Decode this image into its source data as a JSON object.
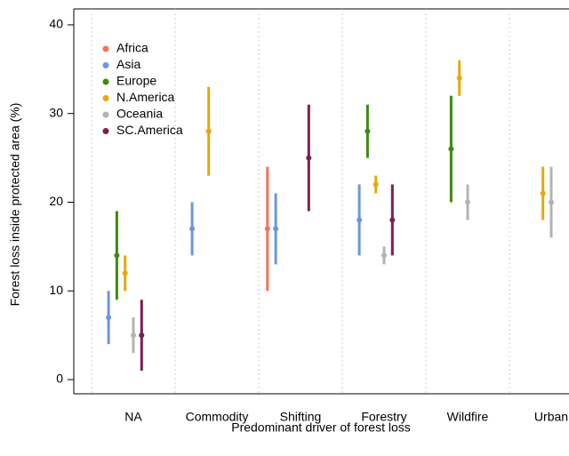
{
  "chart_data": {
    "type": "interval",
    "x_label": "Predominant driver of forest loss",
    "y_label": "Forest loss inside protected area (%)",
    "categories": [
      "NA",
      "Commodity",
      "Shifting",
      "Forestry",
      "Wildfire",
      "Urban"
    ],
    "ylim": [
      -1.6,
      41.8
    ],
    "yticks": [
      0,
      10,
      20,
      30,
      40
    ],
    "legend": "top-left",
    "series": [
      {
        "name": "Africa",
        "color": "#f4735a",
        "values": [
          null,
          null,
          17,
          null,
          null,
          null
        ],
        "low": [
          null,
          null,
          10,
          null,
          null,
          null
        ],
        "high": [
          null,
          null,
          24,
          null,
          null,
          null
        ]
      },
      {
        "name": "Asia",
        "color": "#6a97e0",
        "values": [
          7,
          17,
          17,
          18,
          null,
          null
        ],
        "low": [
          4,
          14,
          13,
          14,
          null,
          null
        ],
        "high": [
          10,
          20,
          21,
          22,
          null,
          null
        ]
      },
      {
        "name": "Europe",
        "color": "#3f8a0f",
        "values": [
          14,
          null,
          null,
          28,
          26,
          null
        ],
        "low": [
          9,
          null,
          null,
          25,
          20,
          null
        ],
        "high": [
          19,
          null,
          null,
          31,
          32,
          null
        ]
      },
      {
        "name": "N.America",
        "color": "#e6a80a",
        "values": [
          12,
          28,
          null,
          22,
          34,
          21
        ],
        "low": [
          10,
          23,
          null,
          21,
          32,
          18
        ],
        "high": [
          14,
          33,
          null,
          23,
          36,
          24
        ]
      },
      {
        "name": "Oceania",
        "color": "#b3b3b3",
        "values": [
          5,
          null,
          null,
          14,
          20,
          20
        ],
        "low": [
          3,
          null,
          null,
          13,
          18,
          16
        ],
        "high": [
          7,
          null,
          null,
          15,
          22,
          24
        ]
      },
      {
        "name": "SC.America",
        "color": "#7d1d52",
        "values": [
          5,
          null,
          25,
          18,
          null,
          null
        ],
        "low": [
          1,
          null,
          19,
          14,
          null,
          null
        ],
        "high": [
          9,
          null,
          31,
          22,
          null,
          null
        ]
      }
    ]
  }
}
